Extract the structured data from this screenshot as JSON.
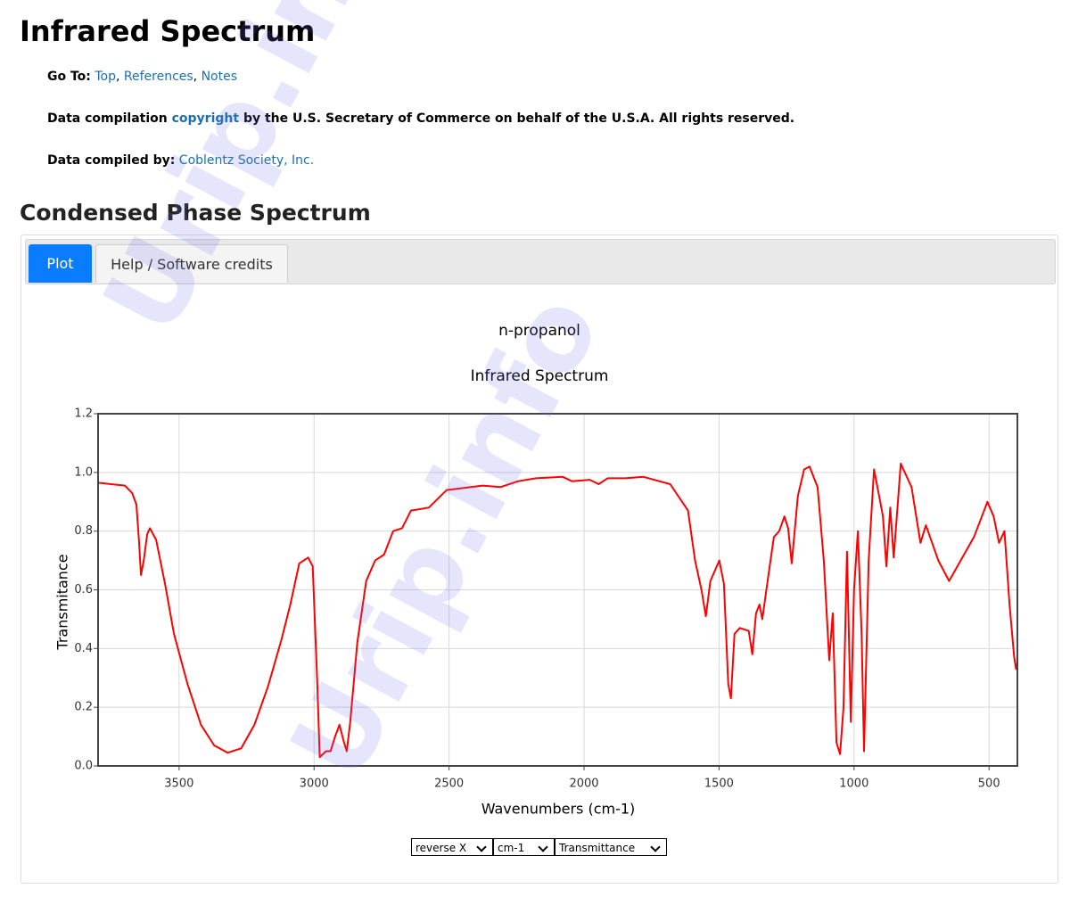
{
  "header": {
    "title": "Infrared Spectrum"
  },
  "goto": {
    "label": "Go To:",
    "links": [
      "Top",
      "References",
      "Notes"
    ],
    "separator": ","
  },
  "copyright": {
    "before": "Data compilation",
    "link": "copyright",
    "after": "by the U.S. Secretary of Commerce on behalf of the U.S.A. All rights reserved."
  },
  "compiled": {
    "label": "Data compiled by:",
    "link": "Coblentz Society, Inc."
  },
  "section_title": "Condensed Phase Spectrum",
  "tabs": [
    "Plot",
    "Help / Software credits"
  ],
  "controls": [
    "reverse X",
    "cm-1",
    "Transmittance"
  ],
  "watermark": "Urip.info",
  "chart_data": {
    "type": "line",
    "title": "n-propanol",
    "subtitle": "Infrared Spectrum",
    "x_label": "Wavenumbers (cm-1)",
    "y_label": "Transmitance",
    "color": "#ff0000",
    "xlim": [
      3800,
      395
    ],
    "ylim": [
      0,
      1.2
    ],
    "reverse_x": true,
    "grid": true,
    "xticks": [
      3500,
      3000,
      2500,
      2000,
      1500,
      1000,
      500
    ],
    "yticks": [
      {
        "value": 0,
        "label": "0.0"
      },
      0.2,
      0.4,
      0.6,
      0.8,
      {
        "value": 1,
        "label": "1.0"
      },
      1.2
    ],
    "x": [
      3800,
      3701,
      3674,
      3658,
      3648,
      3641,
      3631,
      3618,
      3608,
      3585,
      3552,
      3519,
      3469,
      3419,
      3370,
      3320,
      3270,
      3221,
      3171,
      3121,
      3088,
      3055,
      3022,
      3005,
      2989,
      2979,
      2956,
      2939,
      2922,
      2906,
      2889,
      2879,
      2866,
      2840,
      2807,
      2774,
      2741,
      2707,
      2674,
      2641,
      2575,
      2509,
      2376,
      2310,
      2244,
      2178,
      2079,
      2045,
      1979,
      1946,
      1913,
      1847,
      1780,
      1681,
      1615,
      1589,
      1565,
      1549,
      1532,
      1499,
      1482,
      1466,
      1456,
      1443,
      1423,
      1390,
      1377,
      1363,
      1350,
      1340,
      1317,
      1297,
      1277,
      1258,
      1244,
      1231,
      1208,
      1185,
      1165,
      1135,
      1112,
      1092,
      1079,
      1065,
      1052,
      1039,
      1026,
      1012,
      1000,
      986,
      972,
      963,
      946,
      926,
      903,
      893,
      880,
      866,
      853,
      827,
      787,
      754,
      734,
      688,
      648,
      605,
      556,
      506,
      483,
      463,
      443,
      424,
      407,
      400,
      396
    ],
    "values": [
      0.965,
      0.955,
      0.93,
      0.89,
      0.76,
      0.65,
      0.7,
      0.79,
      0.81,
      0.77,
      0.62,
      0.45,
      0.28,
      0.14,
      0.07,
      0.045,
      0.06,
      0.14,
      0.27,
      0.43,
      0.55,
      0.69,
      0.71,
      0.68,
      0.3,
      0.03,
      0.05,
      0.05,
      0.1,
      0.14,
      0.08,
      0.05,
      0.15,
      0.42,
      0.63,
      0.7,
      0.72,
      0.8,
      0.81,
      0.87,
      0.88,
      0.94,
      0.955,
      0.95,
      0.97,
      0.98,
      0.985,
      0.97,
      0.975,
      0.96,
      0.98,
      0.98,
      0.985,
      0.96,
      0.87,
      0.7,
      0.6,
      0.51,
      0.63,
      0.7,
      0.62,
      0.28,
      0.23,
      0.45,
      0.47,
      0.46,
      0.38,
      0.52,
      0.55,
      0.5,
      0.65,
      0.78,
      0.8,
      0.85,
      0.81,
      0.69,
      0.92,
      1.01,
      1.02,
      0.95,
      0.7,
      0.36,
      0.52,
      0.08,
      0.04,
      0.2,
      0.73,
      0.15,
      0.6,
      0.8,
      0.45,
      0.05,
      0.7,
      1.01,
      0.9,
      0.85,
      0.68,
      0.88,
      0.71,
      1.03,
      0.95,
      0.76,
      0.82,
      0.7,
      0.63,
      0.7,
      0.78,
      0.9,
      0.85,
      0.76,
      0.8,
      0.55,
      0.37,
      0.33,
      0.35
    ]
  }
}
